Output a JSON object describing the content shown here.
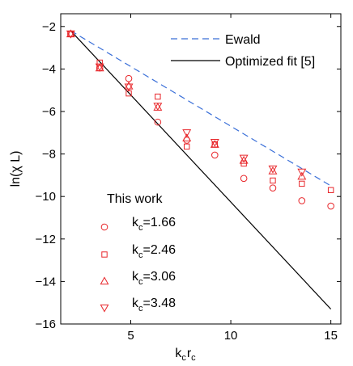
{
  "chart_data": {
    "type": "scatter",
    "title": "",
    "xlabel": {
      "main": "k",
      "sub1": "c",
      "mid": "r",
      "sub2": "c"
    },
    "ylabel": "ln(χ L)",
    "xlim": [
      1.5,
      15.5
    ],
    "ylim": [
      -16,
      -1.4
    ],
    "xticks": [
      5,
      10,
      15
    ],
    "yticks": [
      -16,
      -14,
      -12,
      -10,
      -8,
      -6,
      -4,
      -2
    ],
    "grid": false,
    "lines": [
      {
        "name": "Ewald",
        "style": "dashed",
        "color": "#3a6fd8",
        "x": [
          2.0,
          15.0
        ],
        "y": [
          -2.2,
          -9.5
        ]
      },
      {
        "name": "Optimized fit [5]",
        "style": "solid",
        "color": "#000000",
        "x": [
          2.0,
          15.0
        ],
        "y": [
          -2.2,
          -15.3
        ]
      }
    ],
    "legend_title": "This work",
    "series": [
      {
        "name": "kc=1.66",
        "label_main": "k",
        "label_sub": "c",
        "label_rest": "=1.66",
        "marker": "circle",
        "color": "#e8262a",
        "x": [
          2.0,
          3.45,
          4.9,
          6.35,
          7.8,
          9.2,
          10.65,
          12.1,
          13.55,
          15.0
        ],
        "y": [
          -2.35,
          -3.95,
          -4.45,
          -6.5,
          -7.35,
          -8.05,
          -9.15,
          -9.6,
          -10.2,
          -10.45
        ]
      },
      {
        "name": "kc=2.46",
        "label_main": "k",
        "label_sub": "c",
        "label_rest": "=2.46",
        "marker": "square",
        "color": "#e8262a",
        "x": [
          2.0,
          3.45,
          4.9,
          6.35,
          7.8,
          9.2,
          10.65,
          12.1,
          13.55,
          15.0
        ],
        "y": [
          -2.35,
          -3.7,
          -5.15,
          -5.3,
          -7.65,
          -7.55,
          -8.45,
          -9.25,
          -9.4,
          -9.7
        ]
      },
      {
        "name": "kc=3.06",
        "label_main": "k",
        "label_sub": "c",
        "label_rest": "=3.06",
        "marker": "triangle-up",
        "color": "#e8262a",
        "x": [
          2.0,
          3.45,
          4.9,
          6.35,
          7.8,
          9.2,
          10.65,
          12.1,
          13.55
        ],
        "y": [
          -2.35,
          -3.95,
          -4.8,
          -5.8,
          -7.25,
          -7.55,
          -8.3,
          -8.8,
          -9.05
        ]
      },
      {
        "name": "kc=3.48",
        "label_main": "k",
        "label_sub": "c",
        "label_rest": "=3.48",
        "marker": "triangle-down",
        "color": "#e8262a",
        "x": [
          2.0,
          3.45,
          4.9,
          6.35,
          7.8,
          9.2,
          10.65,
          12.1,
          13.55
        ],
        "y": [
          -2.35,
          -3.9,
          -4.85,
          -5.75,
          -7.0,
          -7.45,
          -8.2,
          -8.7,
          -8.85
        ]
      }
    ]
  }
}
